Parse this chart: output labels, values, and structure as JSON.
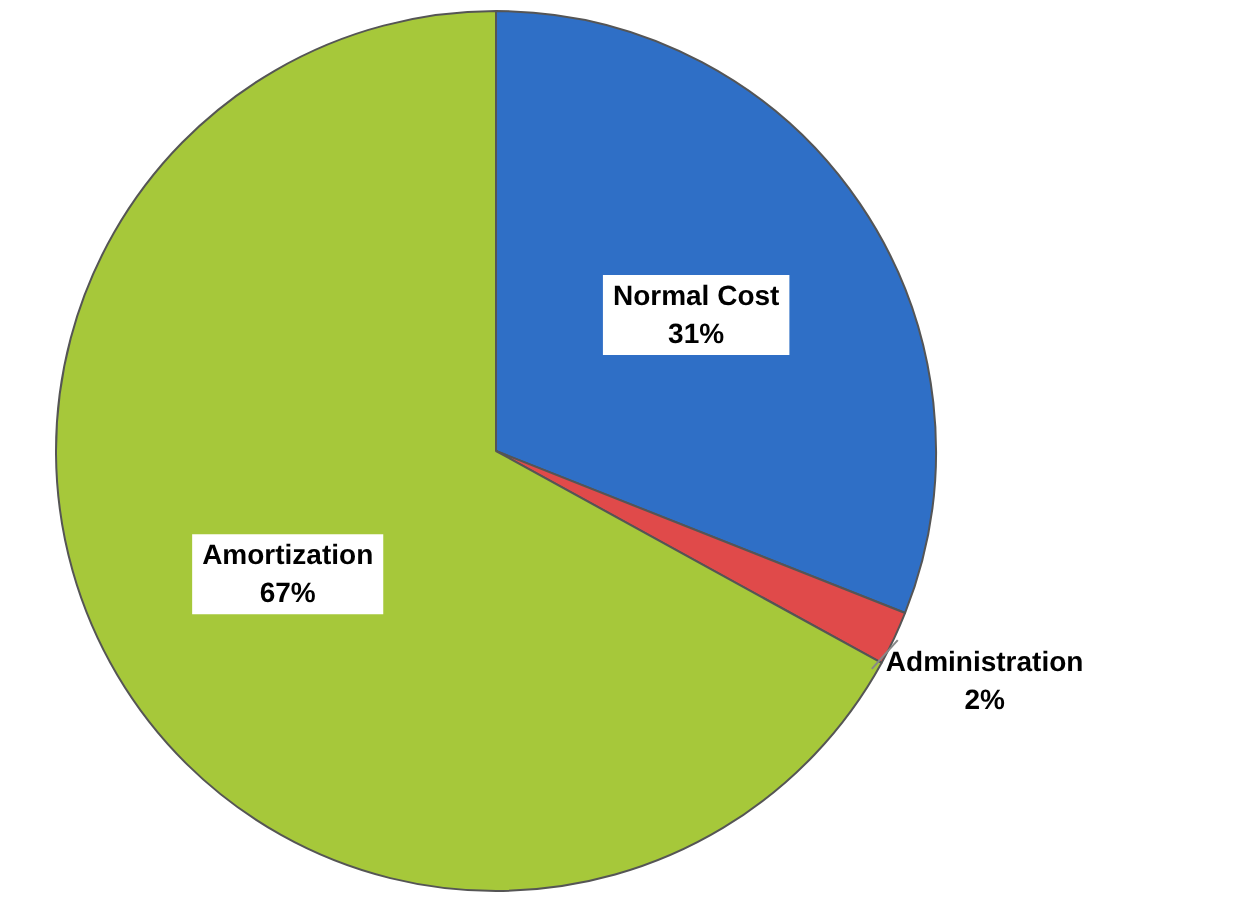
{
  "chart_data": {
    "type": "pie",
    "categories": [
      "Normal Cost",
      "Administration",
      "Amortization"
    ],
    "values": [
      31,
      2,
      67
    ],
    "value_labels": [
      "31%",
      "2%",
      "67%"
    ],
    "colors": [
      "#2f6fc6",
      "#e04a4a",
      "#a6c83a"
    ],
    "legend": false
  }
}
